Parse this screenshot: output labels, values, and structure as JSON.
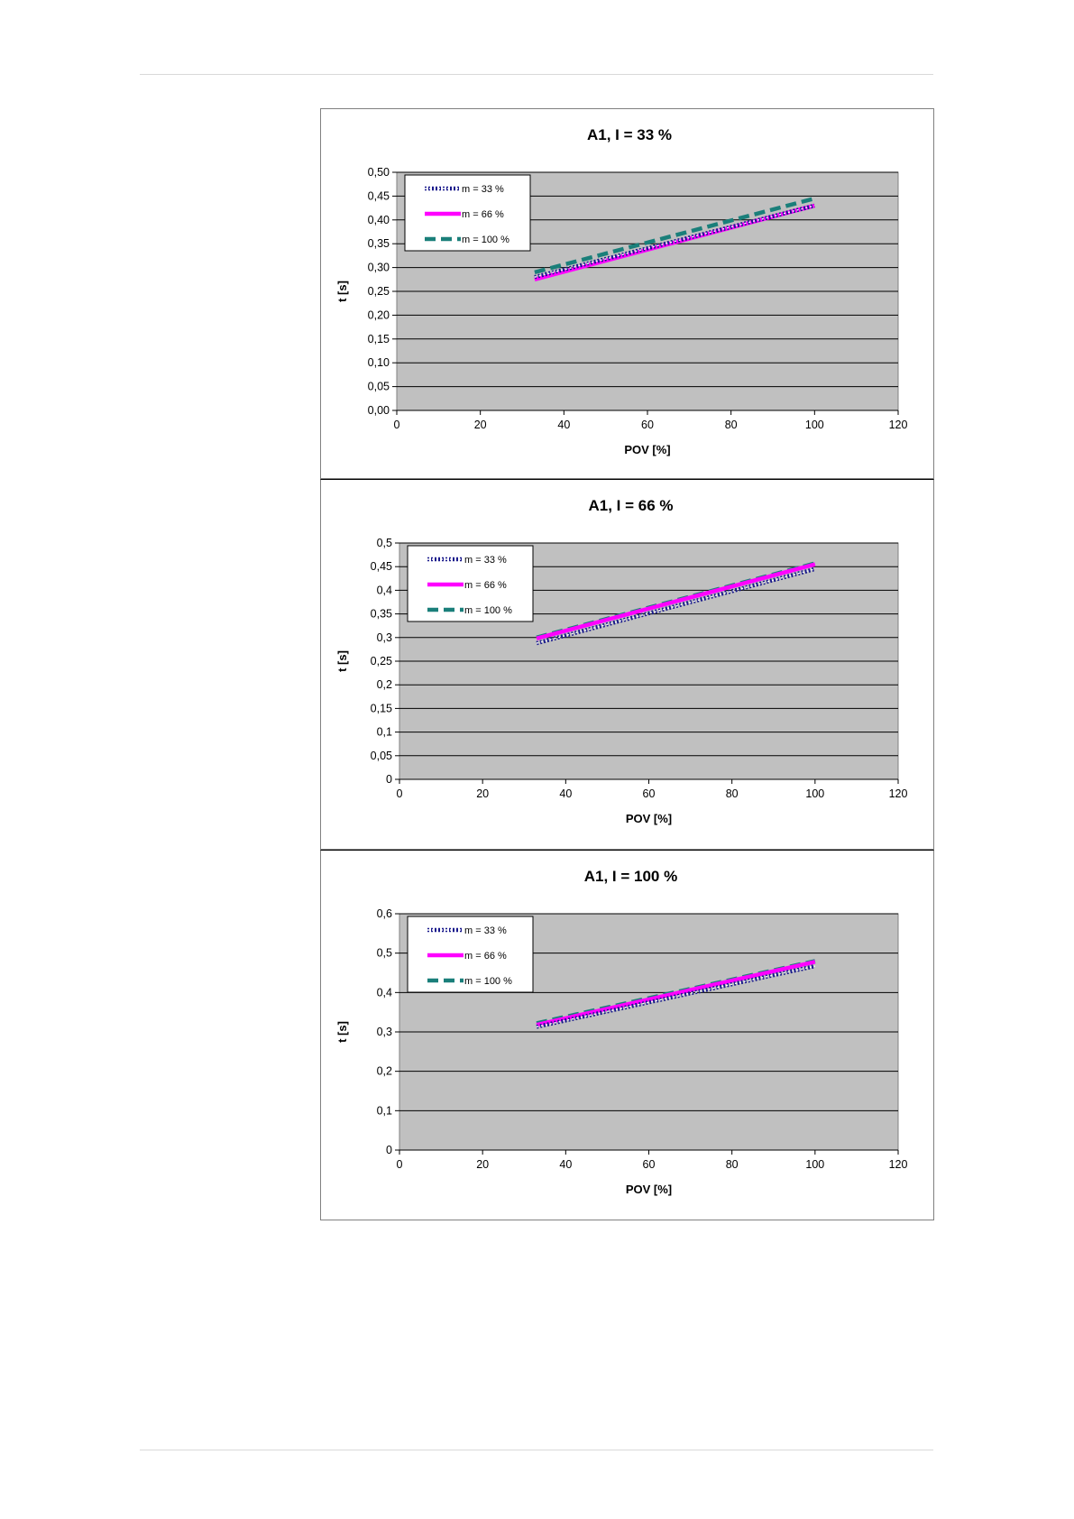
{
  "chart_data": [
    {
      "type": "line",
      "title": "A1, I = 33 %",
      "xlabel": "POV [%]",
      "ylabel": "t [s]",
      "xlim": [
        0,
        120
      ],
      "ylim": [
        0,
        0.5
      ],
      "x_ticks": [
        "0",
        "20",
        "40",
        "60",
        "80",
        "100",
        "120"
      ],
      "y_ticks": [
        "0,00",
        "0,05",
        "0,10",
        "0,15",
        "0,20",
        "0,25",
        "0,30",
        "0,35",
        "0,40",
        "0,45",
        "0,50"
      ],
      "grid": true,
      "legend_position": "top-left",
      "series": [
        {
          "name": "m = 33 %",
          "x": [
            33,
            100
          ],
          "y": [
            0.28,
            0.43
          ]
        },
        {
          "name": "m = 66 %",
          "x": [
            33,
            100
          ],
          "y": [
            0.275,
            0.43
          ]
        },
        {
          "name": "m = 100 %",
          "x": [
            33,
            100
          ],
          "y": [
            0.29,
            0.445
          ]
        }
      ]
    },
    {
      "type": "line",
      "title": "A1, I = 66 %",
      "xlabel": "POV [%]",
      "ylabel": "t [s]",
      "xlim": [
        0,
        120
      ],
      "ylim": [
        0,
        0.5
      ],
      "x_ticks": [
        "0",
        "20",
        "40",
        "60",
        "80",
        "100",
        "120"
      ],
      "y_ticks": [
        "0",
        "0,05",
        "0,1",
        "0,15",
        "0,2",
        "0,25",
        "0,3",
        "0,35",
        "0,4",
        "0,45",
        "0,5"
      ],
      "grid": true,
      "legend_position": "top-left",
      "series": [
        {
          "name": "m = 33 %",
          "x": [
            33,
            100
          ],
          "y": [
            0.288,
            0.445
          ]
        },
        {
          "name": "m = 66 %",
          "x": [
            33,
            100
          ],
          "y": [
            0.298,
            0.455
          ]
        },
        {
          "name": "m = 100 %",
          "x": [
            33,
            100
          ],
          "y": [
            0.3,
            0.457
          ]
        }
      ]
    },
    {
      "type": "line",
      "title": "A1, I = 100 %",
      "xlabel": "POV [%]",
      "ylabel": "t [s]",
      "xlim": [
        0,
        120
      ],
      "ylim": [
        0,
        0.6
      ],
      "x_ticks": [
        "0",
        "20",
        "40",
        "60",
        "80",
        "100",
        "120"
      ],
      "y_ticks": [
        "0",
        "0,1",
        "0,2",
        "0,3",
        "0,4",
        "0,5",
        "0,6"
      ],
      "grid": true,
      "legend_position": "top-left",
      "series": [
        {
          "name": "m = 33 %",
          "x": [
            33,
            100
          ],
          "y": [
            0.313,
            0.467
          ]
        },
        {
          "name": "m = 66 %",
          "x": [
            33,
            100
          ],
          "y": [
            0.318,
            0.478
          ]
        },
        {
          "name": "m = 100 %",
          "x": [
            33,
            100
          ],
          "y": [
            0.322,
            0.48
          ]
        }
      ]
    }
  ],
  "series_styles": [
    {
      "color": "#1a1a8c",
      "dash": "2 2",
      "marker_color": "#ffffff"
    },
    {
      "color": "#ff00ff",
      "dash": ""
    },
    {
      "color": "#1a7f7a",
      "dash": "12 6"
    }
  ],
  "plot_background": "#c0c0c0"
}
